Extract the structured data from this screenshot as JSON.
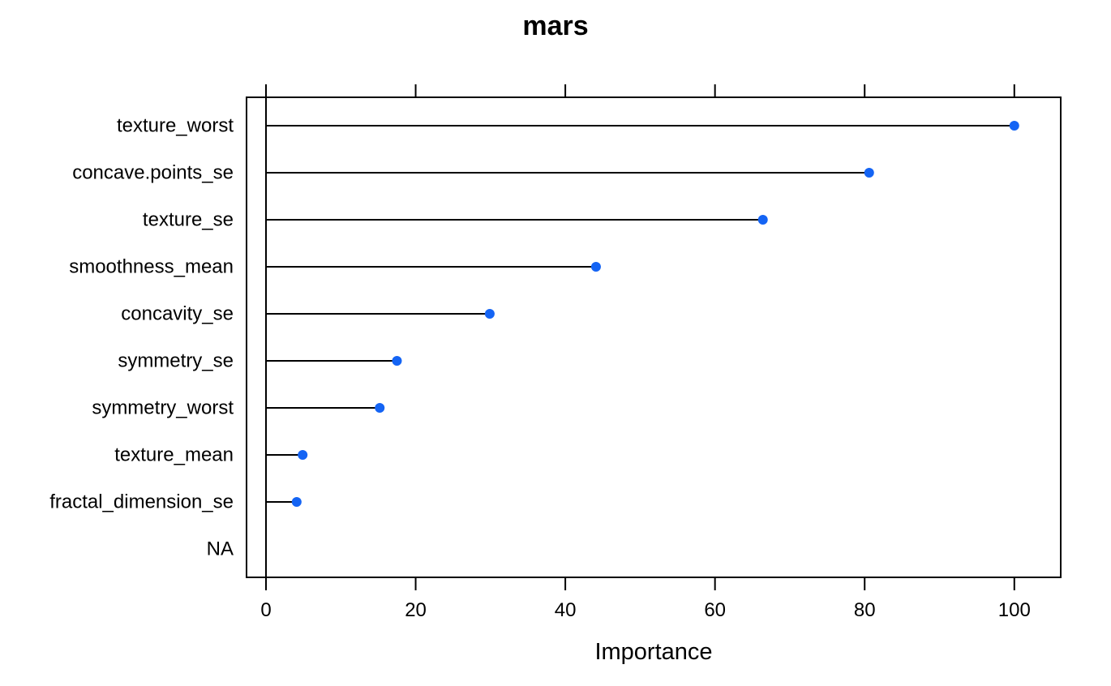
{
  "chart_data": {
    "type": "dot",
    "title": "mars",
    "xlabel": "Importance",
    "ylabel": "",
    "xlim": [
      -2.6,
      106.2
    ],
    "xticks": [
      0,
      20,
      40,
      60,
      80,
      100
    ],
    "categories": [
      "texture_worst",
      "concave.points_se",
      "texture_se",
      "smoothness_mean",
      "concavity_se",
      "symmetry_se",
      "symmetry_worst",
      "texture_mean",
      "fractal_dimension_se",
      "NA"
    ],
    "values": [
      100,
      80.6,
      66.4,
      44.1,
      29.9,
      17.5,
      15.2,
      4.9,
      4.1,
      null
    ],
    "marker_color": "#1464f4",
    "grid": false,
    "baseline": 0
  }
}
